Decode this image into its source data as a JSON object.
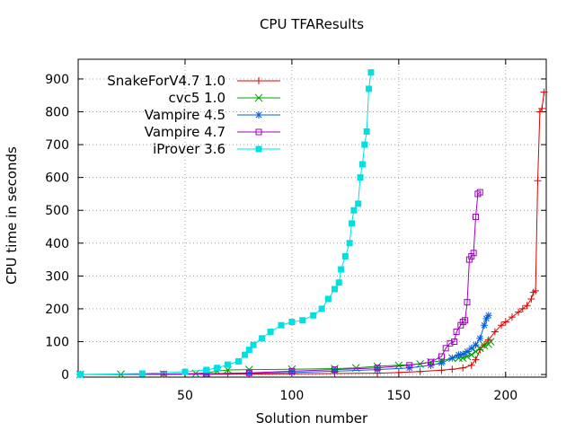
{
  "chart_data": {
    "type": "line",
    "title": "CPU TFAResults",
    "xlabel": "Solution number",
    "ylabel": "CPU time in seconds",
    "xlim": [
      0,
      219
    ],
    "ylim": [
      -8,
      960
    ],
    "x_ticks": [
      50,
      100,
      150,
      200
    ],
    "y_ticks": [
      0,
      100,
      200,
      300,
      400,
      500,
      600,
      700,
      800,
      900
    ],
    "grid": true,
    "legend_position": "top-left",
    "series": [
      {
        "name": "SnakeForV4.7 1.0",
        "color": "#e00000",
        "marker": "plus",
        "points": [
          [
            1,
            0.1
          ],
          [
            40,
            0.5
          ],
          [
            70,
            1
          ],
          [
            100,
            2
          ],
          [
            120,
            3
          ],
          [
            140,
            4
          ],
          [
            150,
            6
          ],
          [
            160,
            9
          ],
          [
            170,
            13
          ],
          [
            175,
            16
          ],
          [
            180,
            20
          ],
          [
            184,
            28
          ],
          [
            186,
            45
          ],
          [
            188,
            75
          ],
          [
            190,
            90
          ],
          [
            192,
            105
          ],
          [
            195,
            130
          ],
          [
            198,
            150
          ],
          [
            200,
            160
          ],
          [
            203,
            175
          ],
          [
            206,
            190
          ],
          [
            208,
            200
          ],
          [
            210,
            210
          ],
          [
            212,
            230
          ],
          [
            213,
            250
          ],
          [
            214,
            255
          ],
          [
            215,
            590
          ],
          [
            216,
            800
          ],
          [
            217,
            810
          ],
          [
            218,
            860
          ]
        ]
      },
      {
        "name": "cvc5 1.0",
        "color": "#00a000",
        "marker": "x",
        "points": [
          [
            1,
            0.1
          ],
          [
            20,
            0.5
          ],
          [
            40,
            1
          ],
          [
            55,
            3
          ],
          [
            60,
            5
          ],
          [
            65,
            10
          ],
          [
            70,
            14
          ],
          [
            80,
            15
          ],
          [
            100,
            16
          ],
          [
            120,
            18
          ],
          [
            130,
            20
          ],
          [
            140,
            25
          ],
          [
            150,
            28
          ],
          [
            160,
            32
          ],
          [
            165,
            38
          ],
          [
            170,
            42
          ],
          [
            175,
            50
          ],
          [
            178,
            50
          ],
          [
            180,
            50
          ],
          [
            182,
            55
          ],
          [
            184,
            60
          ],
          [
            186,
            70
          ],
          [
            188,
            80
          ],
          [
            190,
            88
          ],
          [
            192,
            92
          ],
          [
            193,
            100
          ]
        ]
      },
      {
        "name": "Vampire 4.5",
        "color": "#0060e0",
        "marker": "star",
        "points": [
          [
            1,
            0.1
          ],
          [
            30,
            0.5
          ],
          [
            60,
            2
          ],
          [
            80,
            4
          ],
          [
            100,
            6
          ],
          [
            120,
            10
          ],
          [
            140,
            15
          ],
          [
            155,
            20
          ],
          [
            165,
            28
          ],
          [
            170,
            35
          ],
          [
            175,
            50
          ],
          [
            178,
            60
          ],
          [
            180,
            62
          ],
          [
            182,
            70
          ],
          [
            184,
            80
          ],
          [
            186,
            90
          ],
          [
            188,
            110
          ],
          [
            190,
            150
          ],
          [
            191,
            170
          ],
          [
            192,
            180
          ]
        ]
      },
      {
        "name": "Vampire 4.7",
        "color": "#a000c0",
        "marker": "square",
        "points": [
          [
            1,
            0.1
          ],
          [
            40,
            0.5
          ],
          [
            60,
            2
          ],
          [
            80,
            5
          ],
          [
            100,
            10
          ],
          [
            120,
            15
          ],
          [
            140,
            20
          ],
          [
            155,
            28
          ],
          [
            165,
            38
          ],
          [
            170,
            55
          ],
          [
            172,
            80
          ],
          [
            174,
            95
          ],
          [
            176,
            100
          ],
          [
            177,
            130
          ],
          [
            179,
            150
          ],
          [
            180,
            160
          ],
          [
            181,
            165
          ],
          [
            182,
            220
          ],
          [
            183,
            350
          ],
          [
            184,
            360
          ],
          [
            185,
            370
          ],
          [
            186,
            480
          ],
          [
            187,
            550
          ],
          [
            188,
            555
          ]
        ]
      },
      {
        "name": "iProver 3.6",
        "color": "#00e0e0",
        "marker": "filled-square",
        "points": [
          [
            1,
            0.1
          ],
          [
            30,
            3
          ],
          [
            50,
            8
          ],
          [
            60,
            14
          ],
          [
            65,
            20
          ],
          [
            70,
            30
          ],
          [
            75,
            40
          ],
          [
            78,
            60
          ],
          [
            80,
            75
          ],
          [
            82,
            90
          ],
          [
            86,
            110
          ],
          [
            90,
            130
          ],
          [
            95,
            150
          ],
          [
            100,
            160
          ],
          [
            105,
            165
          ],
          [
            110,
            180
          ],
          [
            114,
            200
          ],
          [
            117,
            230
          ],
          [
            120,
            260
          ],
          [
            122,
            280
          ],
          [
            123,
            320
          ],
          [
            125,
            360
          ],
          [
            127,
            400
          ],
          [
            128,
            460
          ],
          [
            129,
            500
          ],
          [
            131,
            520
          ],
          [
            132,
            600
          ],
          [
            133,
            640
          ],
          [
            134,
            700
          ],
          [
            135,
            740
          ],
          [
            136,
            870
          ],
          [
            137,
            920
          ]
        ]
      }
    ]
  }
}
